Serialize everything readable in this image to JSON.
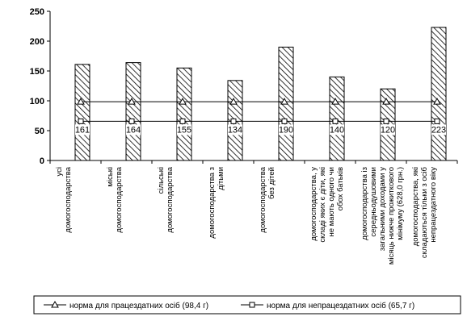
{
  "chart_data": {
    "type": "bar",
    "title": "",
    "xlabel": "",
    "ylabel": "",
    "ylim": [
      0,
      250
    ],
    "yticks": [
      0,
      50,
      100,
      150,
      200,
      250
    ],
    "grid": false,
    "legend_position": "bottom",
    "categories": [
      [
        "усі",
        "домогосподарства"
      ],
      [
        "міські",
        "домогосподарства"
      ],
      [
        "сільські",
        "домогосподарства"
      ],
      [
        "домогосподарства з",
        "дітьми"
      ],
      [
        "домогосподарства",
        "без дітей"
      ],
      [
        "домогосподарства, у",
        "складі яких є діти, які",
        "не мають одного чи",
        "обох батьків"
      ],
      [
        "домогосподарства із",
        "середньодушовими",
        "загальними доходами у",
        "місяць нижче прожиткового",
        "мінімуму (628,0 грн.)"
      ],
      [
        "домогосподарства, які",
        "складаються тільки з осіб",
        "непрацездатного віку"
      ]
    ],
    "values": [
      161,
      164,
      155,
      134,
      190,
      140,
      120,
      223
    ],
    "data_labels": [
      "161",
      "164",
      "155",
      "134",
      "190",
      "140",
      "120",
      "223"
    ],
    "reference_lines": [
      {
        "name": "норма для працездатних осіб (98,4 г)",
        "value": 98.4,
        "marker": "triangle"
      },
      {
        "name": "норма для непрацездатних осіб (65,7 г)",
        "value": 65.7,
        "marker": "square"
      }
    ]
  },
  "colors": {
    "bar_hatch": "#000000",
    "bar_fill": "#ffffff",
    "line": "#000000"
  }
}
